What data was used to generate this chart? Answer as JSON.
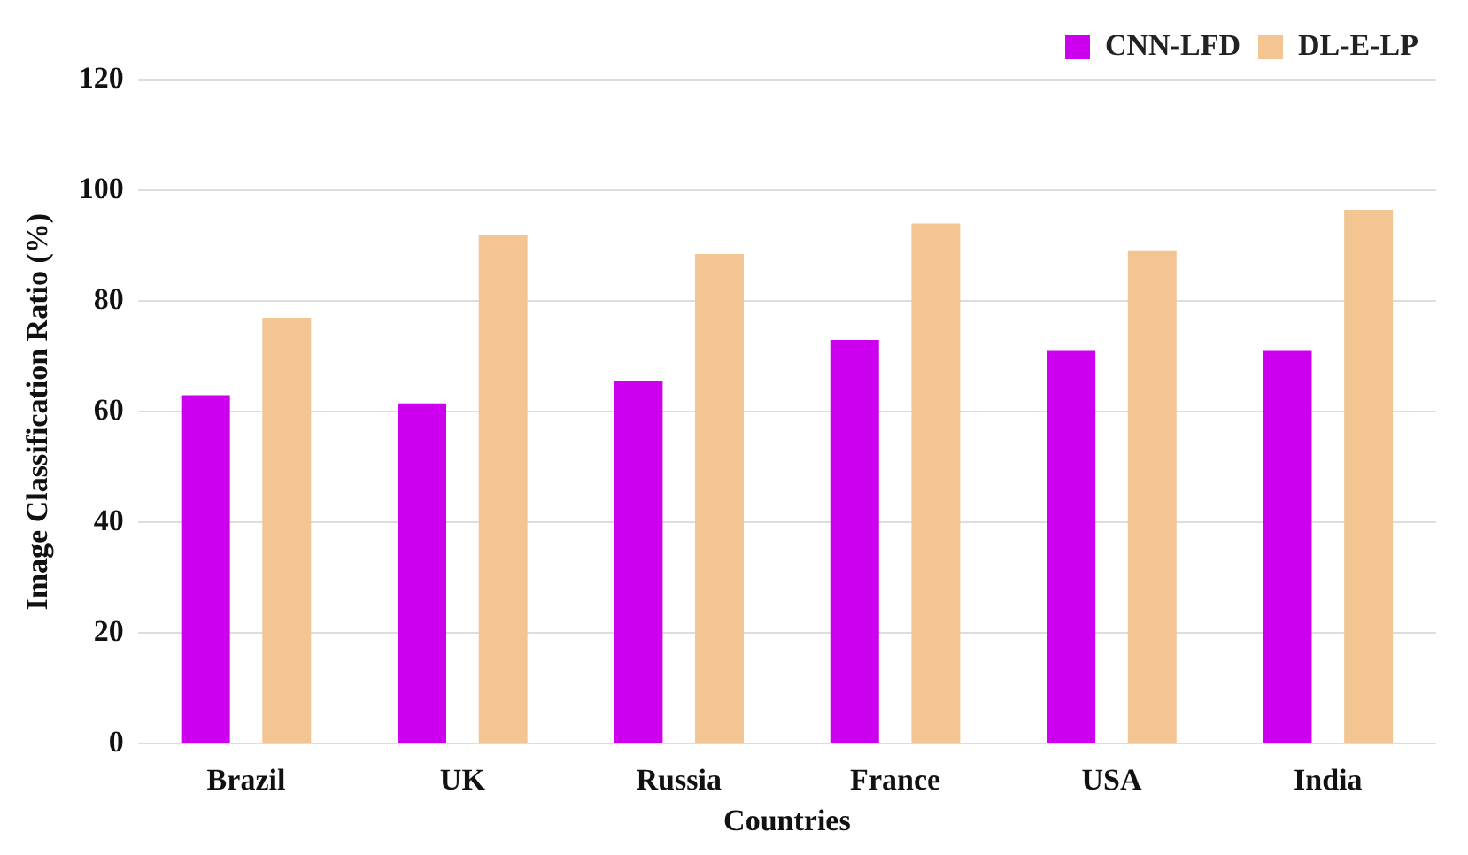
{
  "chart_data": {
    "type": "bar",
    "xlabel": "Countries",
    "ylabel": "Image Classification Ratio (%)",
    "categories": [
      "Brazil",
      "UK",
      "Russia",
      "France",
      "USA",
      "India"
    ],
    "series": [
      {
        "name": "CNN-LFD",
        "color": "#cc00ee",
        "values": [
          63,
          61.5,
          65.5,
          73,
          71,
          71
        ]
      },
      {
        "name": "DL-E-LP",
        "color": "#f2c593",
        "values": [
          77,
          92,
          88.5,
          94,
          89,
          96.5
        ]
      }
    ],
    "ylim": [
      0,
      120
    ],
    "yticks": [
      0,
      20,
      40,
      60,
      80,
      100,
      120
    ],
    "grid": "y",
    "legend": "top right"
  }
}
